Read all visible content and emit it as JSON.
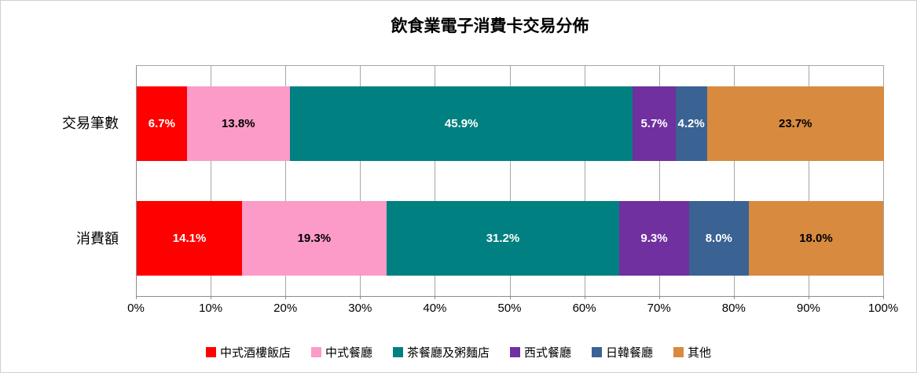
{
  "title": "飲食業電子消費卡交易分佈",
  "chart_data": {
    "type": "bar",
    "stacked": true,
    "orientation": "horizontal",
    "title": "飲食業電子消費卡交易分佈",
    "categories": [
      "交易筆數",
      "消費額"
    ],
    "series": [
      {
        "name": "中式酒樓飯店",
        "color": "#fe0000",
        "label_color": "#ffffff",
        "values": [
          6.7,
          14.1
        ]
      },
      {
        "name": "中式餐廳",
        "color": "#fc9bc7",
        "label_color": "#000000",
        "values": [
          13.8,
          19.3
        ]
      },
      {
        "name": "茶餐廳及粥麵店",
        "color": "#008080",
        "label_color": "#ffffff",
        "values": [
          45.9,
          31.2
        ]
      },
      {
        "name": "西式餐廳",
        "color": "#7030a0",
        "label_color": "#ffffff",
        "values": [
          5.7,
          9.3
        ]
      },
      {
        "name": "日韓餐廳",
        "color": "#3a6293",
        "label_color": "#ffffff",
        "values": [
          4.2,
          8.0
        ]
      },
      {
        "name": "其他",
        "color": "#d88a3f",
        "label_color": "#000000",
        "values": [
          23.7,
          18.0
        ]
      }
    ],
    "value_suffix": "%",
    "x_ticks": [
      "0%",
      "10%",
      "20%",
      "30%",
      "40%",
      "50%",
      "60%",
      "70%",
      "80%",
      "90%",
      "100%"
    ],
    "xlim": [
      0,
      100
    ],
    "grid": true,
    "legend_position": "bottom"
  }
}
